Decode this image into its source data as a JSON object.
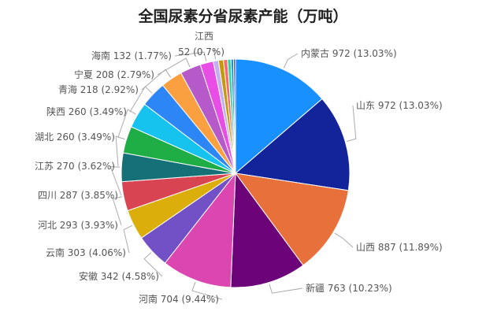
{
  "chart_data": {
    "type": "pie",
    "title": "全国尿素分省尿素产能（万吨）",
    "slices": [
      {
        "label": "内蒙古",
        "value": 972,
        "percent": "13.03%",
        "color": "#1890ff"
      },
      {
        "label": "山东",
        "value": 972,
        "percent": "13.03%",
        "color": "#13249b"
      },
      {
        "label": "山西",
        "value": 887,
        "percent": "11.89%",
        "color": "#e8703a"
      },
      {
        "label": "新疆",
        "value": 763,
        "percent": "10.23%",
        "color": "#6c0378"
      },
      {
        "label": "河南",
        "value": 704,
        "percent": "9.44%",
        "color": "#dc46b0"
      },
      {
        "label": "安徽",
        "value": 342,
        "percent": "4.58%",
        "color": "#7250c6"
      },
      {
        "label": "云南",
        "value": 303,
        "percent": "4.06%",
        "color": "#dcae0c"
      },
      {
        "label": "河北",
        "value": 293,
        "percent": "3.93%",
        "color": "#d94452"
      },
      {
        "label": "四川",
        "value": 287,
        "percent": "3.85%",
        "color": "#157177"
      },
      {
        "label": "江苏",
        "value": 270,
        "percent": "3.62%",
        "color": "#1fad45"
      },
      {
        "label": "湖北",
        "value": 260,
        "percent": "3.49%",
        "color": "#16c3ef"
      },
      {
        "label": "陕西",
        "value": 260,
        "percent": "3.49%",
        "color": "#2d86f5"
      },
      {
        "label": "青海",
        "value": 218,
        "percent": "2.92%",
        "color": "#fba040"
      },
      {
        "label": "宁夏",
        "value": 208,
        "percent": "2.79%",
        "color": "#b659c9"
      },
      {
        "label": "海南",
        "value": 132,
        "percent": "1.77%",
        "color": "#e84ee6"
      },
      {
        "label": "江西",
        "value": 52,
        "percent": "0.7%",
        "color": "#c4aef3"
      },
      {
        "label": "",
        "value": 50,
        "percent": "",
        "color": "#c49a0c"
      },
      {
        "label": "",
        "value": 40,
        "percent": "",
        "color": "#f86a6a"
      },
      {
        "label": "",
        "value": 35,
        "percent": "",
        "color": "#2ed7a0"
      },
      {
        "label": "",
        "value": 25,
        "percent": "",
        "color": "#1590d8"
      },
      {
        "label": "",
        "value": 20,
        "percent": "",
        "color": "#4656c6"
      }
    ]
  }
}
